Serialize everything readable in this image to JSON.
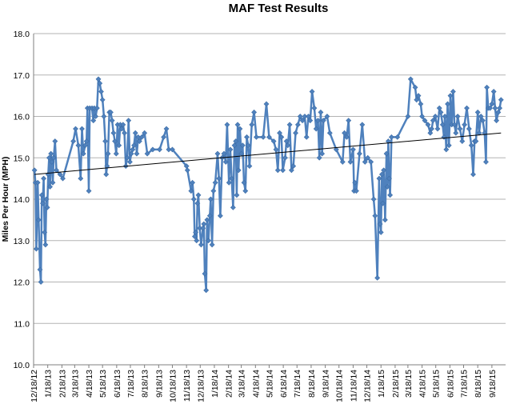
{
  "chart_data": {
    "type": "line",
    "title": "MAF Test Results",
    "xlabel": "",
    "ylabel": "Miles Per Hour (MPH)",
    "ylim": [
      10.0,
      18.0
    ],
    "yticks": [
      "10.0",
      "11.0",
      "12.0",
      "13.0",
      "14.0",
      "15.0",
      "16.0",
      "17.0",
      "18.0"
    ],
    "xlim": [
      "2012-12-18",
      "2015-10-18"
    ],
    "xticks": [
      "12/18/12",
      "1/18/13",
      "2/18/13",
      "3/18/13",
      "4/18/13",
      "5/18/13",
      "6/18/13",
      "7/18/13",
      "8/18/13",
      "9/18/13",
      "10/18/13",
      "11/18/13",
      "12/18/13",
      "1/18/14",
      "2/18/14",
      "3/18/14",
      "4/18/14",
      "5/18/14",
      "6/18/14",
      "7/18/14",
      "8/18/14",
      "9/18/14",
      "10/18/14",
      "11/18/14",
      "12/18/14",
      "1/18/15",
      "2/18/15",
      "3/18/15",
      "4/18/15",
      "5/18/15",
      "6/18/15",
      "7/18/15",
      "8/18/15",
      "9/18/15"
    ],
    "grid": true,
    "legend": "none",
    "series": [
      {
        "color": "#4f81bd",
        "points": [
          [
            "2012-12-20",
            14.7
          ],
          [
            "2012-12-22",
            14.4
          ],
          [
            "2012-12-24",
            12.8
          ],
          [
            "2012-12-27",
            14.4
          ],
          [
            "2012-12-29",
            13.5
          ],
          [
            "2013-01-01",
            12.3
          ],
          [
            "2013-01-03",
            12.0
          ],
          [
            "2013-01-05",
            14.1
          ],
          [
            "2013-01-07",
            13.9
          ],
          [
            "2013-01-09",
            14.5
          ],
          [
            "2013-01-11",
            13.2
          ],
          [
            "2013-01-13",
            12.9
          ],
          [
            "2013-01-15",
            14.0
          ],
          [
            "2013-01-17",
            13.8
          ],
          [
            "2013-01-19",
            14.6
          ],
          [
            "2013-01-21",
            15.0
          ],
          [
            "2013-01-23",
            14.3
          ],
          [
            "2013-01-25",
            15.1
          ],
          [
            "2013-01-27",
            14.9
          ],
          [
            "2013-01-29",
            14.4
          ],
          [
            "2013-01-31",
            15.0
          ],
          [
            "2013-02-03",
            15.4
          ],
          [
            "2013-02-06",
            14.7
          ],
          [
            "2013-02-14",
            14.6
          ],
          [
            "2013-02-20",
            14.5
          ],
          [
            "2013-03-15",
            15.4
          ],
          [
            "2013-03-20",
            15.7
          ],
          [
            "2013-03-26",
            15.3
          ],
          [
            "2013-03-31",
            14.5
          ],
          [
            "2013-04-03",
            15.7
          ],
          [
            "2013-04-06",
            15.1
          ],
          [
            "2013-04-10",
            15.3
          ],
          [
            "2013-04-13",
            15.4
          ],
          [
            "2013-04-15",
            16.2
          ],
          [
            "2013-04-18",
            14.2
          ],
          [
            "2013-04-20",
            16.2
          ],
          [
            "2013-04-25",
            16.2
          ],
          [
            "2013-04-28",
            15.9
          ],
          [
            "2013-04-30",
            16.2
          ],
          [
            "2013-05-03",
            16.0
          ],
          [
            "2013-05-06",
            16.2
          ],
          [
            "2013-05-09",
            16.9
          ],
          [
            "2013-05-12",
            16.8
          ],
          [
            "2013-05-15",
            16.6
          ],
          [
            "2013-05-18",
            16.4
          ],
          [
            "2013-05-21",
            16.0
          ],
          [
            "2013-05-24",
            15.4
          ],
          [
            "2013-05-26",
            14.6
          ],
          [
            "2013-05-28",
            14.8
          ],
          [
            "2013-05-30",
            15.1
          ],
          [
            "2013-06-02",
            16.1
          ],
          [
            "2013-06-05",
            16.1
          ],
          [
            "2013-06-08",
            15.9
          ],
          [
            "2013-06-11",
            15.6
          ],
          [
            "2013-06-14",
            15.4
          ],
          [
            "2013-06-17",
            15.1
          ],
          [
            "2013-06-20",
            15.8
          ],
          [
            "2013-06-23",
            15.3
          ],
          [
            "2013-06-26",
            15.8
          ],
          [
            "2013-06-29",
            15.7
          ],
          [
            "2013-07-02",
            15.8
          ],
          [
            "2013-07-05",
            15.6
          ],
          [
            "2013-07-08",
            14.8
          ],
          [
            "2013-07-11",
            15.0
          ],
          [
            "2013-07-14",
            15.9
          ],
          [
            "2013-07-17",
            14.9
          ],
          [
            "2013-07-20",
            15.1
          ],
          [
            "2013-07-23",
            15.2
          ],
          [
            "2013-07-26",
            15.3
          ],
          [
            "2013-07-29",
            15.6
          ],
          [
            "2013-08-01",
            15.1
          ],
          [
            "2013-08-04",
            15.5
          ],
          [
            "2013-08-07",
            15.4
          ],
          [
            "2013-08-12",
            15.5
          ],
          [
            "2013-08-18",
            15.6
          ],
          [
            "2013-08-24",
            15.1
          ],
          [
            "2013-09-05",
            15.2
          ],
          [
            "2013-09-20",
            15.2
          ],
          [
            "2013-09-29",
            15.5
          ],
          [
            "2013-10-05",
            15.7
          ],
          [
            "2013-10-10",
            15.2
          ],
          [
            "2013-10-18",
            15.2
          ],
          [
            "2013-11-18",
            14.8
          ],
          [
            "2013-11-20",
            14.7
          ],
          [
            "2013-11-28",
            14.2
          ],
          [
            "2013-12-01",
            14.4
          ],
          [
            "2013-12-04",
            14.0
          ],
          [
            "2013-12-06",
            13.1
          ],
          [
            "2013-12-08",
            13.2
          ],
          [
            "2013-12-10",
            13.0
          ],
          [
            "2013-12-12",
            13.9
          ],
          [
            "2013-12-14",
            14.1
          ],
          [
            "2013-12-17",
            13.3
          ],
          [
            "2013-12-20",
            12.9
          ],
          [
            "2013-12-24",
            13.3
          ],
          [
            "2013-12-26",
            13.4
          ],
          [
            "2013-12-28",
            12.2
          ],
          [
            "2013-12-31",
            11.8
          ],
          [
            "2014-01-02",
            13.5
          ],
          [
            "2014-01-05",
            13.0
          ],
          [
            "2014-01-08",
            13.6
          ],
          [
            "2014-01-10",
            14.0
          ],
          [
            "2014-01-13",
            12.9
          ],
          [
            "2014-01-16",
            14.2
          ],
          [
            "2014-01-20",
            14.4
          ],
          [
            "2014-01-25",
            15.1
          ],
          [
            "2014-01-28",
            14.5
          ],
          [
            "2014-01-31",
            13.6
          ],
          [
            "2014-02-04",
            15.0
          ],
          [
            "2014-02-08",
            15.1
          ],
          [
            "2014-02-12",
            14.9
          ],
          [
            "2014-02-15",
            15.8
          ],
          [
            "2014-02-19",
            14.4
          ],
          [
            "2014-02-22",
            15.2
          ],
          [
            "2014-02-25",
            14.5
          ],
          [
            "2014-02-28",
            13.8
          ],
          [
            "2014-03-03",
            15.3
          ],
          [
            "2014-03-06",
            15.4
          ],
          [
            "2014-03-08",
            14.1
          ],
          [
            "2014-03-10",
            15.8
          ],
          [
            "2014-03-12",
            14.7
          ],
          [
            "2014-03-15",
            15.7
          ],
          [
            "2014-03-18",
            15.1
          ],
          [
            "2014-03-21",
            15.3
          ],
          [
            "2014-03-24",
            14.4
          ],
          [
            "2014-03-27",
            14.2
          ],
          [
            "2014-03-30",
            15.5
          ],
          [
            "2014-04-02",
            15.3
          ],
          [
            "2014-04-05",
            14.8
          ],
          [
            "2014-04-10",
            15.8
          ],
          [
            "2014-04-15",
            16.1
          ],
          [
            "2014-04-20",
            15.5
          ],
          [
            "2014-05-05",
            15.5
          ],
          [
            "2014-05-12",
            16.3
          ],
          [
            "2014-05-18",
            15.5
          ],
          [
            "2014-05-28",
            15.4
          ],
          [
            "2014-06-02",
            15.2
          ],
          [
            "2014-06-06",
            14.7
          ],
          [
            "2014-06-10",
            15.6
          ],
          [
            "2014-06-14",
            15.5
          ],
          [
            "2014-06-17",
            14.7
          ],
          [
            "2014-06-22",
            15.0
          ],
          [
            "2014-06-25",
            15.4
          ],
          [
            "2014-06-28",
            15.3
          ],
          [
            "2014-07-02",
            15.8
          ],
          [
            "2014-07-06",
            14.7
          ],
          [
            "2014-07-10",
            14.8
          ],
          [
            "2014-07-15",
            15.6
          ],
          [
            "2014-07-20",
            15.8
          ],
          [
            "2014-07-25",
            16.0
          ],
          [
            "2014-07-30",
            15.9
          ],
          [
            "2014-08-04",
            16.0
          ],
          [
            "2014-08-08",
            15.5
          ],
          [
            "2014-08-12",
            16.0
          ],
          [
            "2014-08-16",
            15.9
          ],
          [
            "2014-08-20",
            16.6
          ],
          [
            "2014-08-25",
            16.2
          ],
          [
            "2014-08-29",
            15.7
          ],
          [
            "2014-09-02",
            15.9
          ],
          [
            "2014-09-05",
            15.0
          ],
          [
            "2014-09-08",
            16.1
          ],
          [
            "2014-09-11",
            15.1
          ],
          [
            "2014-09-14",
            15.9
          ],
          [
            "2014-09-22",
            16.0
          ],
          [
            "2014-09-28",
            15.6
          ],
          [
            "2014-10-12",
            15.2
          ],
          [
            "2014-10-26",
            14.9
          ],
          [
            "2014-10-30",
            15.6
          ],
          [
            "2014-11-04",
            15.5
          ],
          [
            "2014-11-08",
            15.9
          ],
          [
            "2014-11-12",
            14.9
          ],
          [
            "2014-11-18",
            15.2
          ],
          [
            "2014-11-20",
            14.2
          ],
          [
            "2014-11-22",
            14.4
          ],
          [
            "2014-11-25",
            14.2
          ],
          [
            "2014-12-02",
            15.1
          ],
          [
            "2014-12-08",
            15.8
          ],
          [
            "2014-12-14",
            14.9
          ],
          [
            "2014-12-20",
            15.0
          ],
          [
            "2014-12-27",
            14.9
          ],
          [
            "2015-01-02",
            14.0
          ],
          [
            "2015-01-05",
            13.6
          ],
          [
            "2015-01-10",
            12.1
          ],
          [
            "2015-01-14",
            14.5
          ],
          [
            "2015-01-16",
            13.4
          ],
          [
            "2015-01-18",
            13.2
          ],
          [
            "2015-01-20",
            14.6
          ],
          [
            "2015-01-22",
            13.9
          ],
          [
            "2015-01-24",
            14.7
          ],
          [
            "2015-01-27",
            13.5
          ],
          [
            "2015-01-30",
            15.1
          ],
          [
            "2015-02-01",
            14.3
          ],
          [
            "2015-02-03",
            15.4
          ],
          [
            "2015-02-05",
            14.5
          ],
          [
            "2015-02-07",
            14.1
          ],
          [
            "2015-02-10",
            15.5
          ],
          [
            "2015-02-23",
            15.5
          ],
          [
            "2015-03-18",
            16.0
          ],
          [
            "2015-03-24",
            16.9
          ],
          [
            "2015-04-03",
            16.7
          ],
          [
            "2015-04-06",
            16.4
          ],
          [
            "2015-04-10",
            16.5
          ],
          [
            "2015-04-15",
            16.3
          ],
          [
            "2015-04-18",
            16.0
          ],
          [
            "2015-04-24",
            15.9
          ],
          [
            "2015-05-01",
            15.8
          ],
          [
            "2015-05-06",
            15.6
          ],
          [
            "2015-05-09",
            15.7
          ],
          [
            "2015-05-12",
            15.9
          ],
          [
            "2015-05-17",
            16.0
          ],
          [
            "2015-05-22",
            15.7
          ],
          [
            "2015-05-26",
            16.2
          ],
          [
            "2015-05-29",
            16.1
          ],
          [
            "2015-06-02",
            15.8
          ],
          [
            "2015-06-05",
            15.5
          ],
          [
            "2015-06-07",
            16.0
          ],
          [
            "2015-06-10",
            15.2
          ],
          [
            "2015-06-13",
            16.3
          ],
          [
            "2015-06-16",
            15.3
          ],
          [
            "2015-06-19",
            16.5
          ],
          [
            "2015-06-22",
            15.8
          ],
          [
            "2015-06-25",
            16.6
          ],
          [
            "2015-06-28",
            15.8
          ],
          [
            "2015-07-01",
            15.6
          ],
          [
            "2015-07-05",
            16.0
          ],
          [
            "2015-07-10",
            15.7
          ],
          [
            "2015-07-15",
            15.4
          ],
          [
            "2015-07-20",
            15.8
          ],
          [
            "2015-07-25",
            16.2
          ],
          [
            "2015-07-30",
            15.7
          ],
          [
            "2015-08-04",
            15.3
          ],
          [
            "2015-08-08",
            14.6
          ],
          [
            "2015-08-11",
            15.4
          ],
          [
            "2015-08-14",
            15.4
          ],
          [
            "2015-08-18",
            16.1
          ],
          [
            "2015-08-21",
            15.6
          ],
          [
            "2015-08-25",
            16.0
          ],
          [
            "2015-08-29",
            15.9
          ],
          [
            "2015-09-02",
            15.6
          ],
          [
            "2015-09-05",
            14.9
          ],
          [
            "2015-09-07",
            16.7
          ],
          [
            "2015-09-10",
            16.2
          ],
          [
            "2015-09-14",
            16.2
          ],
          [
            "2015-09-18",
            16.3
          ],
          [
            "2015-09-22",
            16.6
          ],
          [
            "2015-09-25",
            16.2
          ],
          [
            "2015-09-28",
            15.9
          ],
          [
            "2015-10-02",
            16.1
          ],
          [
            "2015-10-05",
            16.2
          ],
          [
            "2015-10-08",
            16.4
          ]
        ]
      }
    ],
    "trendline": {
      "type": "linear",
      "color": "#000000",
      "from": [
        "2012-12-20",
        14.6
      ],
      "to": [
        "2015-10-08",
        15.6
      ]
    }
  }
}
